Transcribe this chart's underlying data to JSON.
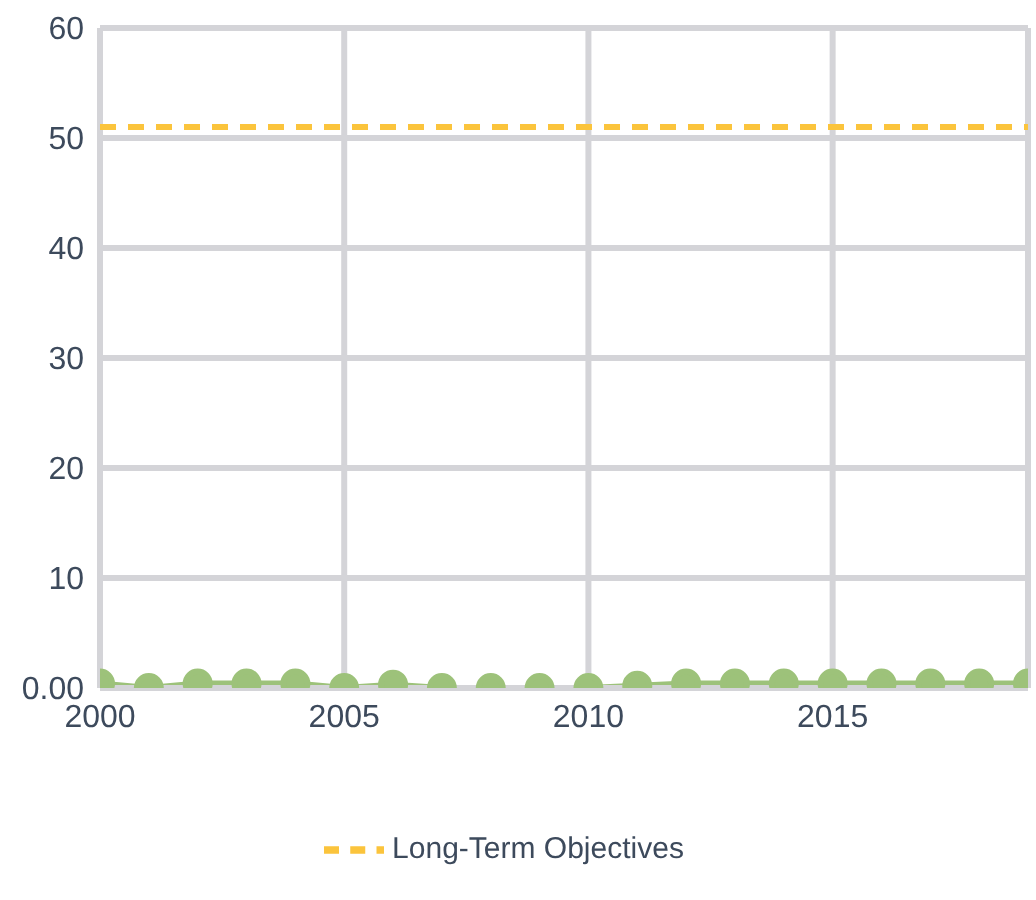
{
  "chart_data": {
    "type": "line",
    "x": [
      2000,
      2001,
      2002,
      2003,
      2004,
      2005,
      2006,
      2007,
      2008,
      2009,
      2010,
      2011,
      2012,
      2013,
      2014,
      2015,
      2016,
      2017,
      2018,
      2019
    ],
    "series": [
      {
        "color": "#9dc27a",
        "marker": "circle",
        "line_style": "solid",
        "values": [
          0.4,
          0,
          0.4,
          0.4,
          0.4,
          0,
          0.3,
          0,
          0,
          0,
          0,
          0.2,
          0.4,
          0.4,
          0.4,
          0.4,
          0.4,
          0.4,
          0.4,
          0.4
        ]
      },
      {
        "name": "Long-Term Objectives",
        "color": "#fbc43c",
        "marker": "none",
        "line_style": "dashed",
        "values": [
          51,
          51,
          51,
          51,
          51,
          51,
          51,
          51,
          51,
          51,
          51,
          51,
          51,
          51,
          51,
          51,
          51,
          51,
          51,
          51
        ]
      }
    ],
    "xlim": [
      2000,
      2019
    ],
    "xticks": [
      2000,
      2005,
      2010,
      2015
    ],
    "ylim": [
      0,
      60
    ],
    "yticks": [
      {
        "value": 0,
        "label": "0.00"
      },
      10,
      20,
      30,
      40,
      50,
      60
    ],
    "grid": true,
    "legend": "bottom"
  }
}
